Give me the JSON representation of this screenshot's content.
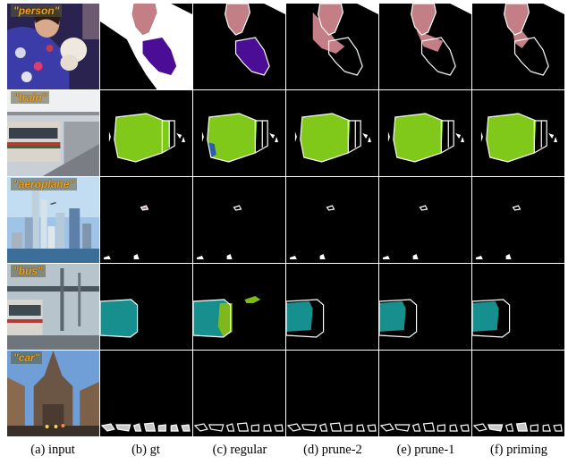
{
  "columns": [
    {
      "id": "input",
      "caption": "(a) input"
    },
    {
      "id": "gt",
      "caption": "(b) gt"
    },
    {
      "id": "regular",
      "caption": "(c) regular"
    },
    {
      "id": "prune2",
      "caption": "(d) prune-2"
    },
    {
      "id": "prune1",
      "caption": "(e) prune-1"
    },
    {
      "id": "priming",
      "caption": "(f) priming"
    }
  ],
  "rows": [
    {
      "id": "person",
      "label": "\"person\""
    },
    {
      "id": "train",
      "label": "\"train\""
    },
    {
      "id": "aeroplane",
      "label": "\"aeroplane\""
    },
    {
      "id": "bus",
      "label": "\"bus\""
    },
    {
      "id": "car",
      "label": "\"car\""
    }
  ],
  "colors": {
    "background": "#000000",
    "border": "#ffffff",
    "person": "#c47f86",
    "train": "#80c91b",
    "bus": "#178f8f",
    "car": "#c8c8c8",
    "dog": "#4b0d96",
    "wrong_blue": "#2a5fa8",
    "wrong_green": "#7fb81c"
  }
}
